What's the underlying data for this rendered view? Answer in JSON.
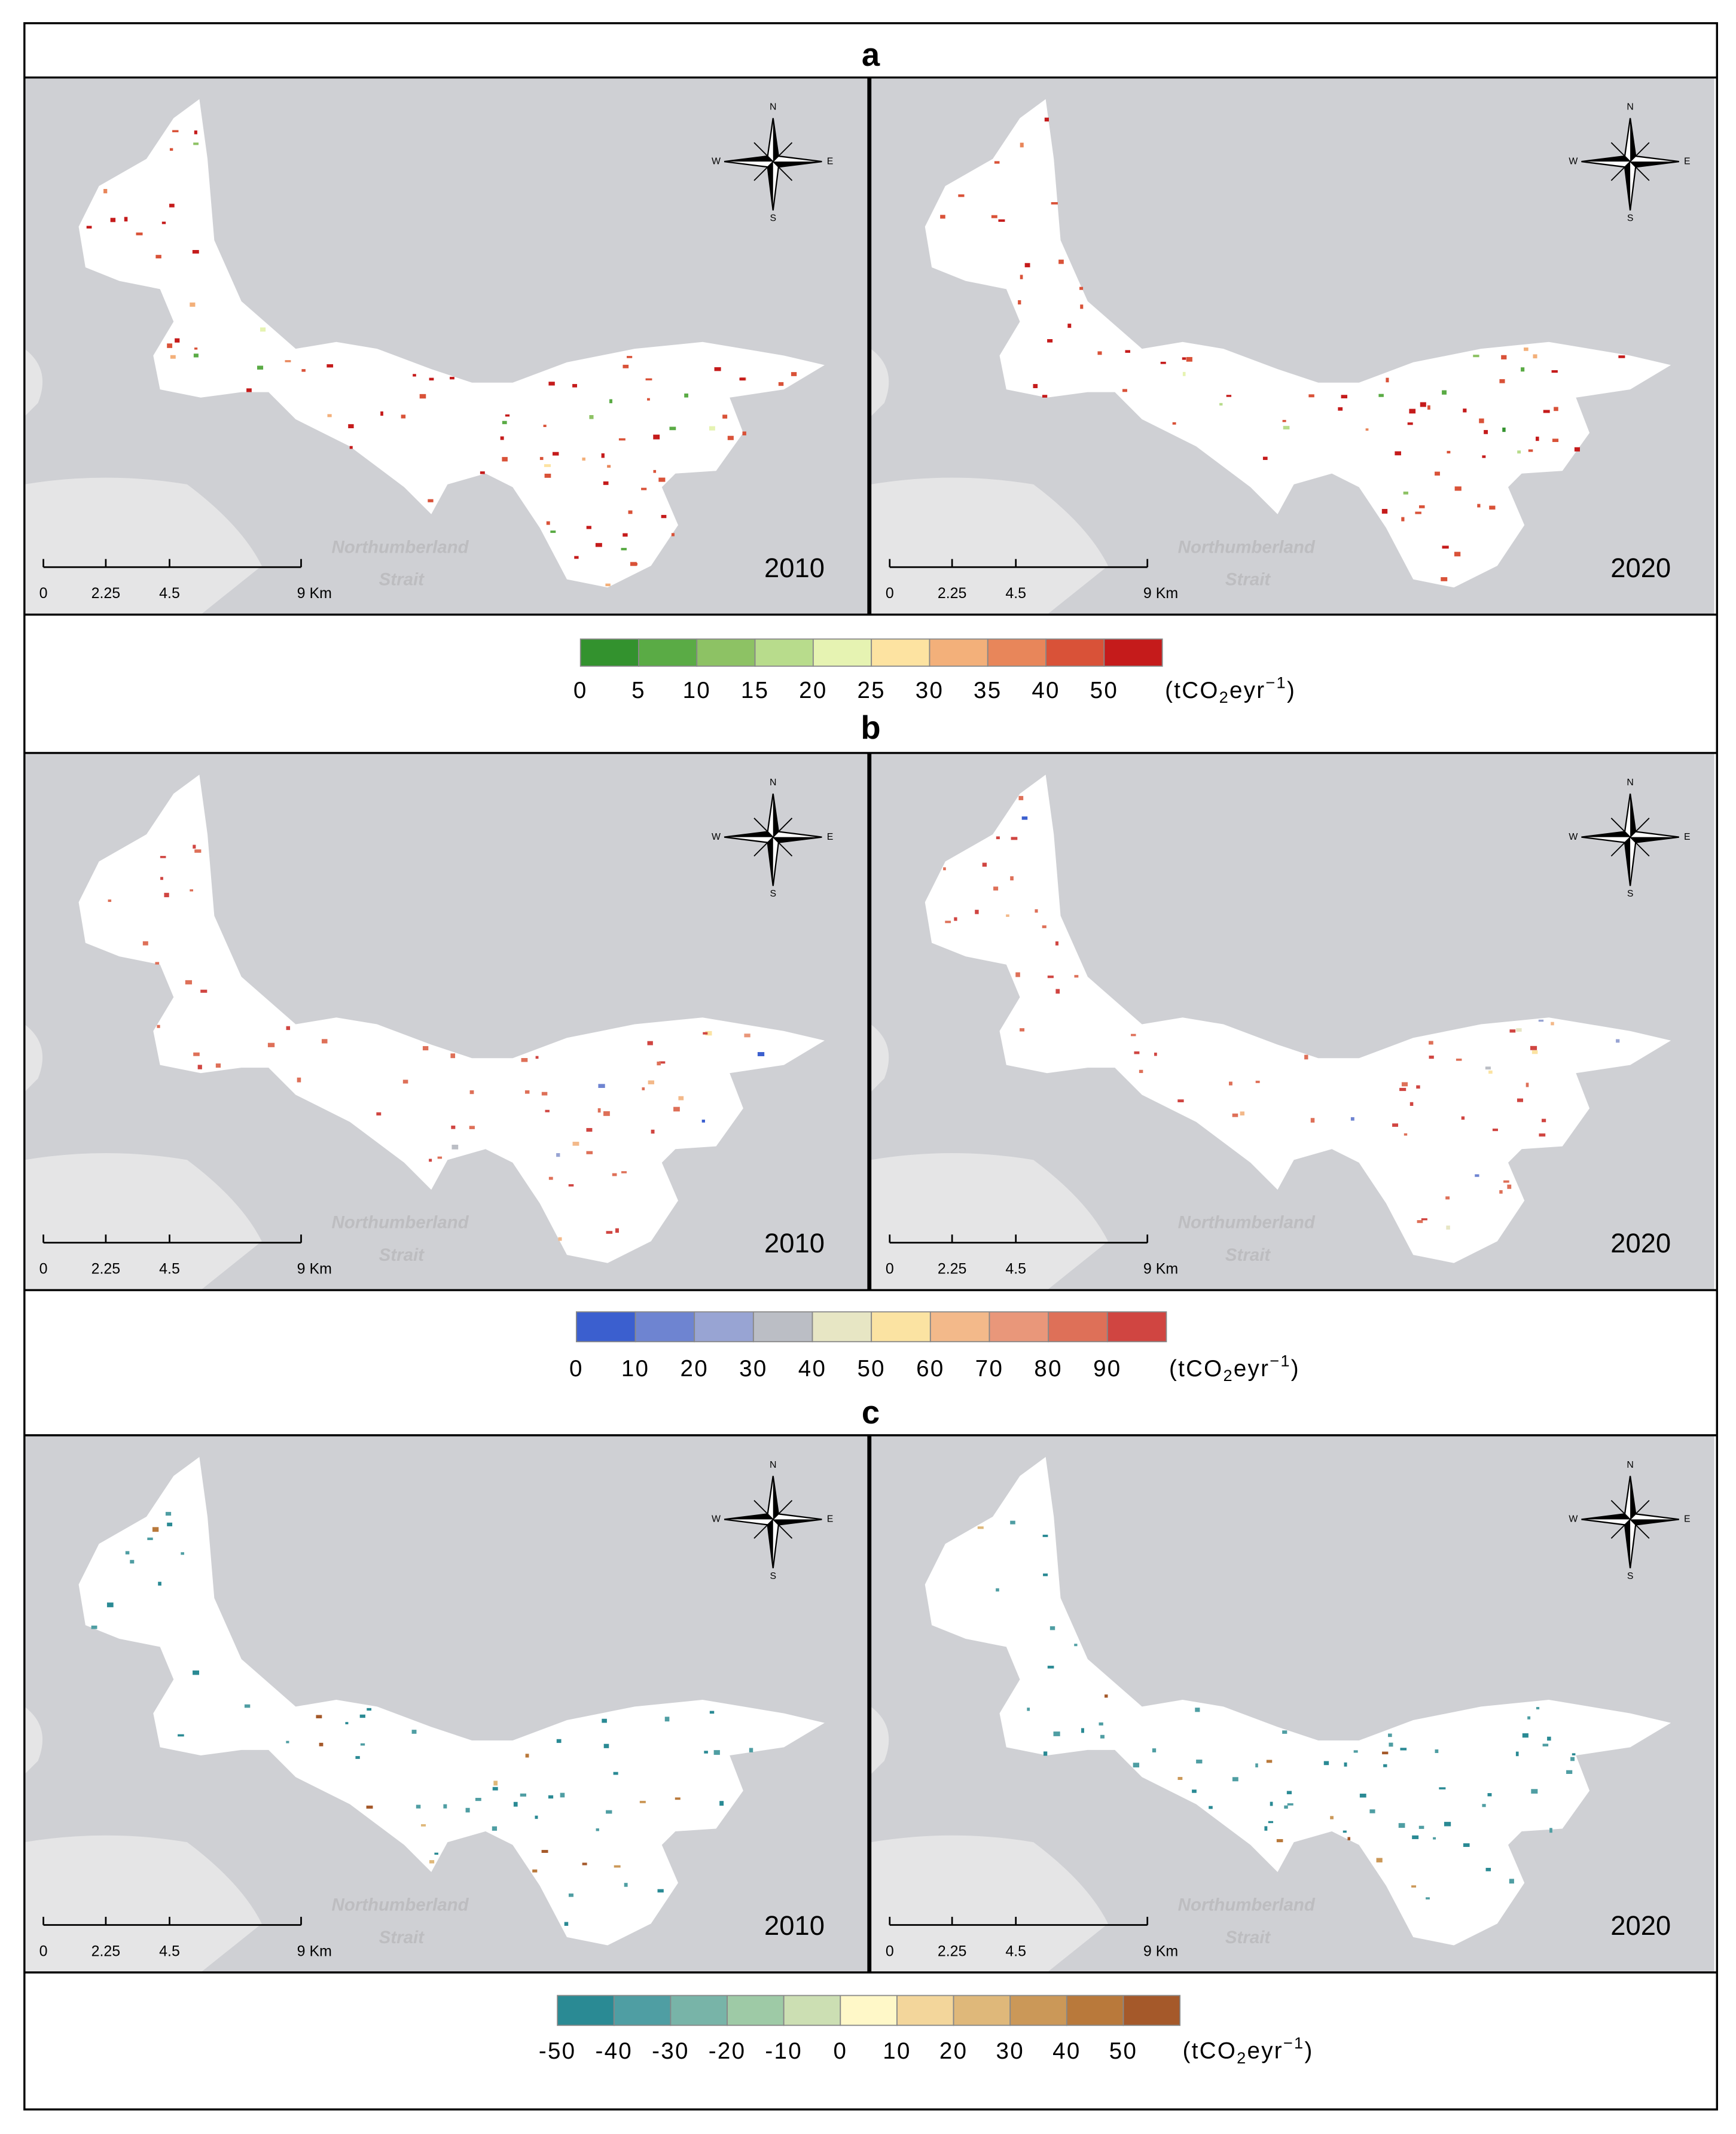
{
  "panels": [
    {
      "label": "a",
      "maps": [
        {
          "year": "2010"
        },
        {
          "year": "2020"
        }
      ],
      "legend": {
        "colors": [
          "#33922e",
          "#5aab45",
          "#8dc264",
          "#b8dc8c",
          "#e6f3b2",
          "#fde3a1",
          "#f3b07a",
          "#e8865a",
          "#d95238",
          "#c51b1b"
        ],
        "ticks": [
          0,
          5,
          10,
          15,
          20,
          25,
          30,
          35,
          40,
          50
        ]
      }
    },
    {
      "label": "b",
      "maps": [
        {
          "year": "2010"
        },
        {
          "year": "2020"
        }
      ],
      "legend": {
        "colors": [
          "#3b5fcf",
          "#6e84d1",
          "#98a4d3",
          "#bbbec5",
          "#e7e6c4",
          "#fbe3a2",
          "#f3b98a",
          "#e9977a",
          "#de7058",
          "#d04541"
        ],
        "ticks": [
          0,
          10,
          20,
          30,
          40,
          50,
          60,
          70,
          80,
          90
        ]
      }
    },
    {
      "label": "c",
      "maps": [
        {
          "year": "2010"
        },
        {
          "year": "2020"
        }
      ],
      "legend": {
        "colors": [
          "#2a8a94",
          "#4f9ea3",
          "#78b4a8",
          "#9ecaa6",
          "#ccdfb3",
          "#fff8c8",
          "#f3d69b",
          "#dfb87a",
          "#cb9858",
          "#b9793b",
          "#a5592a"
        ],
        "ticks": [
          -50,
          -40,
          -30,
          -20,
          -10,
          0,
          10,
          20,
          30,
          40,
          50
        ]
      }
    }
  ],
  "unit": {
    "open": "(tCO",
    "sub": "2",
    "mid": "eyr",
    "sup": "−1",
    "close": ")"
  },
  "map_text": {
    "sea": [
      "Northumberland",
      "Strait"
    ],
    "compass": [
      "N",
      "S",
      "W",
      "E"
    ],
    "scale_bar": [
      "0",
      "2.25",
      "4.5",
      "9 Km"
    ]
  }
}
